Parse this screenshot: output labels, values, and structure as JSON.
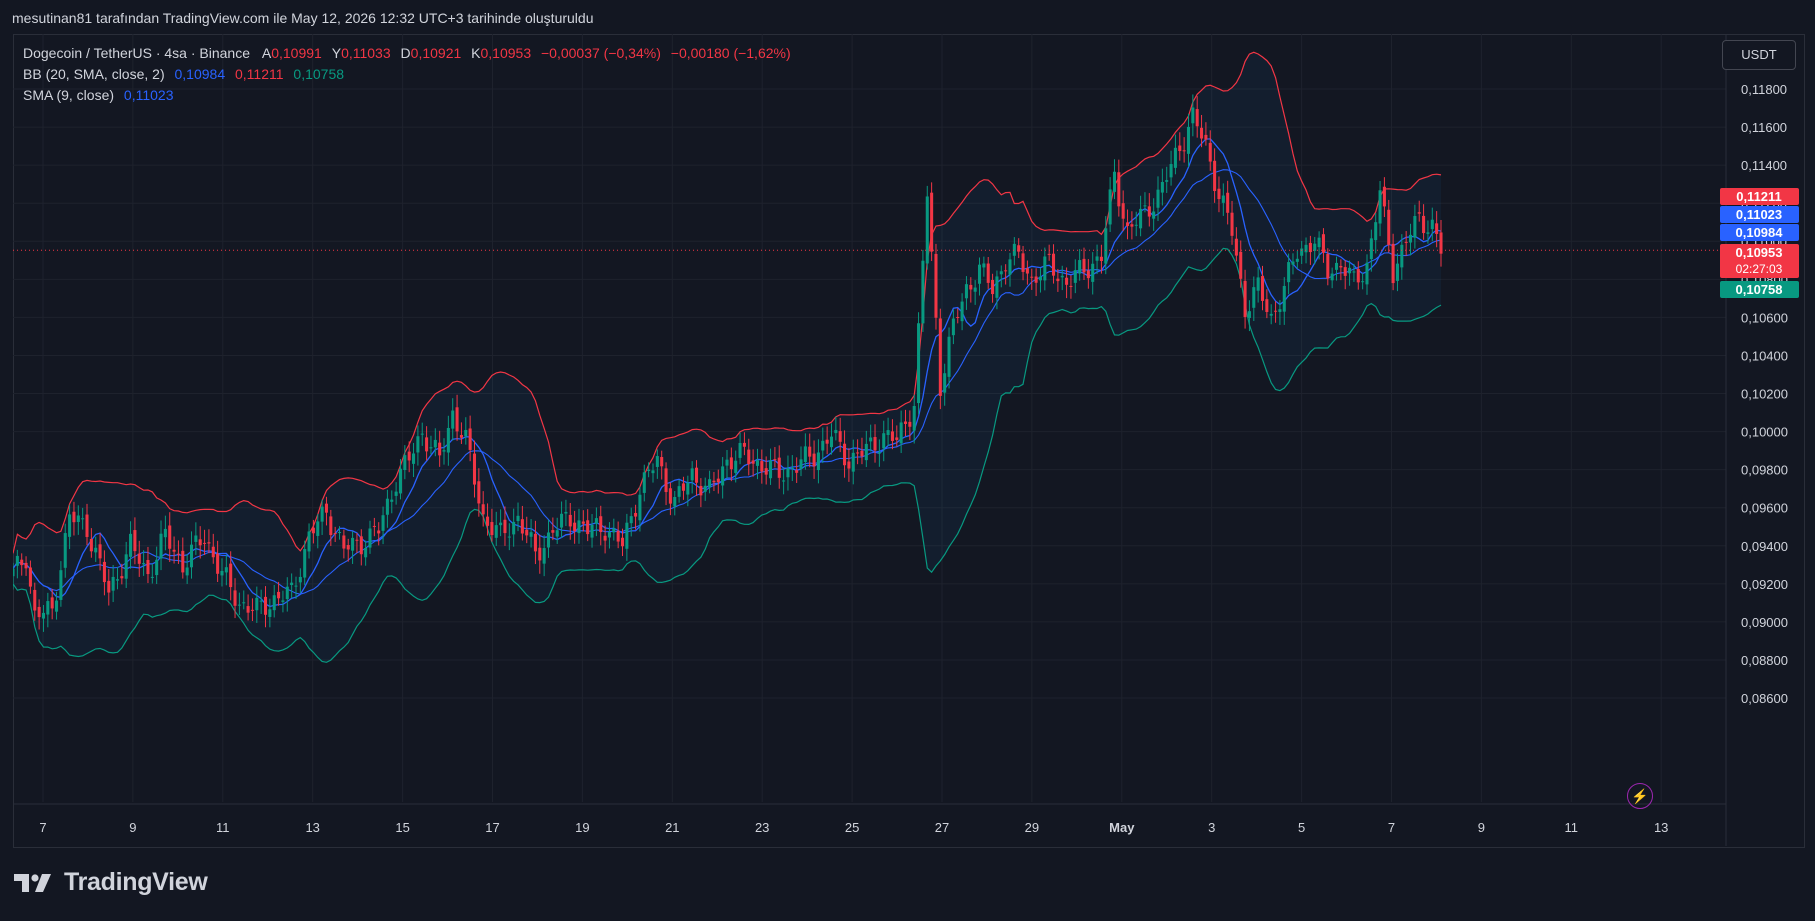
{
  "header": {
    "caption": "mesutinan81 tarafından TradingView.com ile May 12, 2026 12:32 UTC+3 tarihinde oluşturuldu"
  },
  "legend": {
    "symbol": "Dogecoin / TetherUS · 4sa · Binance",
    "o_label": "A",
    "o_value": "0,10991",
    "h_label": "Y",
    "h_value": "0,11033",
    "l_label": "D",
    "l_value": "0,10921",
    "c_label": "K",
    "c_value": "0,10953",
    "change": "−0,00037 (−0,34%)",
    "change2": "−0,00180 (−1,62%)",
    "bb_label": "BB (20, SMA, close, 2)",
    "bb_basis": "0,10984",
    "bb_upper": "0,11211",
    "bb_lower": "0,10758",
    "sma_label": "SMA (9, close)",
    "sma_value": "0,11023"
  },
  "currency_button": "USDT",
  "brand": {
    "name": "TradingView",
    "logo_icon": "tradingview-logo-icon"
  },
  "colors": {
    "up": "#089981",
    "down": "#f23645",
    "bb_upper": "#f23645",
    "bb_basis": "#2962ff",
    "bb_lower": "#089981",
    "sma": "#2962ff",
    "background": "#131722",
    "grid": "#1e222d"
  },
  "chart_data": {
    "type": "candlestick",
    "title": "Dogecoin / TetherUS · 4sa · Binance",
    "ylim": [
      0.086,
      0.119
    ],
    "y_ticks": [
      "0,11800",
      "0,11600",
      "0,11400",
      "0,11200",
      "0,11000",
      "0,10800",
      "0,10600",
      "0,10400",
      "0,10200",
      "0,10000",
      "0,09800",
      "0,09600",
      "0,09400",
      "0,09200",
      "0,09000",
      "0,08800",
      "0,08600"
    ],
    "x_ticks": [
      "7",
      "9",
      "11",
      "13",
      "15",
      "17",
      "19",
      "21",
      "23",
      "25",
      "27",
      "29",
      "May",
      "3",
      "5",
      "7",
      "9",
      "11",
      "13"
    ],
    "price_labels": [
      {
        "value": "0,11211",
        "color": "#f23645"
      },
      {
        "value": "0,11023",
        "color": "#2962ff"
      },
      {
        "value": "0,10984",
        "color": "#2962ff"
      },
      {
        "value": "0,10953",
        "color": "#f23645",
        "sub": "02:27:03"
      },
      {
        "value": "0,10758",
        "color": "#089981"
      }
    ],
    "series": [
      {
        "name": "Dogecoin / TetherUS",
        "close_anchor": [
          [
            0,
            0.0925
          ],
          [
            3,
            0.0935
          ],
          [
            5,
            0.0903
          ],
          [
            9,
            0.0906
          ],
          [
            13,
            0.0955
          ],
          [
            17,
            0.095
          ],
          [
            22,
            0.0915
          ],
          [
            27,
            0.094
          ],
          [
            31,
            0.0925
          ],
          [
            35,
            0.0945
          ],
          [
            39,
            0.093
          ],
          [
            44,
            0.0945
          ],
          [
            48,
            0.0925
          ],
          [
            52,
            0.091
          ],
          [
            56,
            0.0906
          ],
          [
            60,
            0.0912
          ],
          [
            64,
            0.0915
          ],
          [
            68,
            0.0945
          ],
          [
            72,
            0.0958
          ],
          [
            76,
            0.0938
          ],
          [
            80,
            0.0942
          ],
          [
            84,
            0.0948
          ],
          [
            88,
            0.0975
          ],
          [
            91,
            0.0985
          ],
          [
            94,
            0.1
          ],
          [
            98,
            0.0985
          ],
          [
            101,
            0.101
          ],
          [
            104,
            0.0995
          ],
          [
            108,
            0.0955
          ],
          [
            112,
            0.0945
          ],
          [
            116,
            0.0955
          ],
          [
            120,
            0.0935
          ],
          [
            124,
            0.0948
          ],
          [
            128,
            0.0955
          ],
          [
            132,
            0.0948
          ],
          [
            136,
            0.095
          ],
          [
            140,
            0.094
          ],
          [
            144,
            0.097
          ],
          [
            148,
            0.0985
          ],
          [
            152,
            0.0962
          ],
          [
            156,
            0.0978
          ],
          [
            160,
            0.0968
          ],
          [
            164,
            0.0985
          ],
          [
            168,
            0.0988
          ],
          [
            172,
            0.0982
          ],
          [
            176,
            0.0978
          ],
          [
            180,
            0.0982
          ],
          [
            184,
            0.0988
          ],
          [
            188,
            0.0998
          ],
          [
            192,
            0.0985
          ],
          [
            196,
            0.099
          ],
          [
            200,
            0.0998
          ],
          [
            203,
            0.0995
          ],
          [
            207,
            0.1015
          ],
          [
            210,
            0.1125
          ],
          [
            213,
            0.1025
          ],
          [
            216,
            0.1055
          ],
          [
            219,
            0.1075
          ],
          [
            222,
            0.1085
          ],
          [
            225,
            0.1075
          ],
          [
            228,
            0.109
          ],
          [
            231,
            0.1092
          ],
          [
            234,
            0.108
          ],
          [
            238,
            0.1088
          ],
          [
            242,
            0.1078
          ],
          [
            246,
            0.1085
          ],
          [
            250,
            0.1092
          ],
          [
            253,
            0.1135
          ],
          [
            256,
            0.1105
          ],
          [
            260,
            0.1115
          ],
          [
            264,
            0.1128
          ],
          [
            268,
            0.115
          ],
          [
            271,
            0.1165
          ],
          [
            274,
            0.115
          ],
          [
            277,
            0.1125
          ],
          [
            280,
            0.1105
          ],
          [
            283,
            0.1065
          ],
          [
            286,
            0.1075
          ],
          [
            289,
            0.106
          ],
          [
            292,
            0.1075
          ],
          [
            295,
            0.1095
          ],
          [
            299,
            0.11
          ],
          [
            302,
            0.1085
          ],
          [
            305,
            0.1088
          ],
          [
            308,
            0.1078
          ],
          [
            311,
            0.1088
          ],
          [
            314,
            0.1125
          ],
          [
            317,
            0.1085
          ],
          [
            320,
            0.11
          ],
          [
            323,
            0.1112
          ],
          [
            326,
            0.1108
          ],
          [
            328,
            0.1095
          ]
        ]
      }
    ]
  }
}
